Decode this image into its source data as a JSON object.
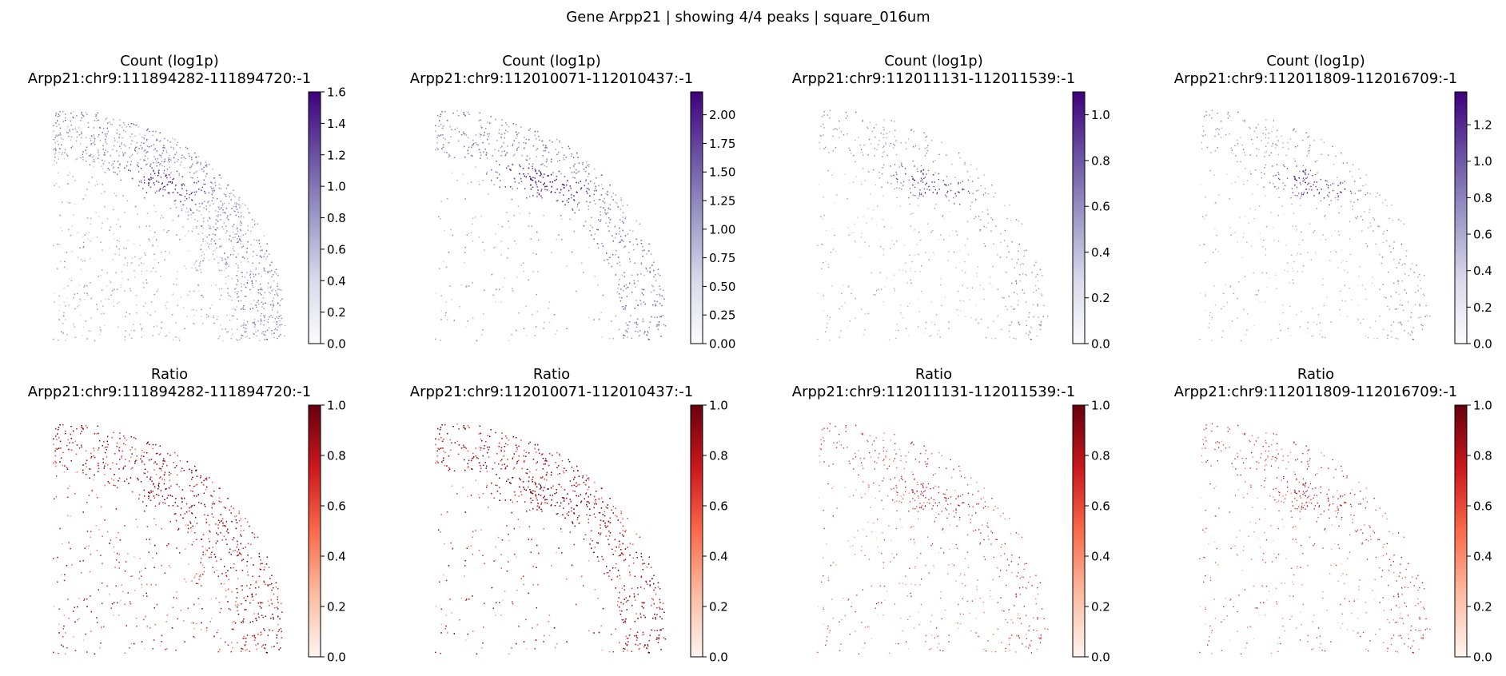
{
  "figure": {
    "suptitle": "Gene Arpp21 | showing 4/4 peaks | square_016um"
  },
  "chart_data": [
    {
      "type": "scatter",
      "row": "count",
      "colormap": "Purples",
      "title_line1": "Count (log1p)",
      "title_line2": "Arpp21:chr9:111894282-111894720:-1",
      "colorbar": {
        "min": 0.0,
        "max": 1.6,
        "ticks": [
          "0.0",
          "0.2",
          "0.4",
          "0.6",
          "0.8",
          "1.0",
          "1.2",
          "1.4",
          "1.6"
        ]
      },
      "density": "high",
      "pattern": "cortex_hippo"
    },
    {
      "type": "scatter",
      "row": "count",
      "colormap": "Purples",
      "title_line1": "Count (log1p)",
      "title_line2": "Arpp21:chr9:112010071-112010437:-1",
      "colorbar": {
        "min": 0.0,
        "max": 2.2,
        "ticks": [
          "0.00",
          "0.25",
          "0.50",
          "0.75",
          "1.00",
          "1.25",
          "1.50",
          "1.75",
          "2.00"
        ]
      },
      "density": "high",
      "pattern": "cortex_striatum"
    },
    {
      "type": "scatter",
      "row": "count",
      "colormap": "Purples",
      "title_line1": "Count (log1p)",
      "title_line2": "Arpp21:chr9:112011131-112011539:-1",
      "colorbar": {
        "min": 0.0,
        "max": 1.1,
        "ticks": [
          "0.0",
          "0.2",
          "0.4",
          "0.6",
          "0.8",
          "1.0"
        ]
      },
      "density": "low",
      "pattern": "sparse_striatum"
    },
    {
      "type": "scatter",
      "row": "count",
      "colormap": "Purples",
      "title_line1": "Count (log1p)",
      "title_line2": "Arpp21:chr9:112011809-112016709:-1",
      "colorbar": {
        "min": 0.0,
        "max": 1.38,
        "ticks": [
          "0.0",
          "0.2",
          "0.4",
          "0.6",
          "0.8",
          "1.0",
          "1.2"
        ]
      },
      "density": "low",
      "pattern": "sparse_striatum"
    },
    {
      "type": "scatter",
      "row": "ratio",
      "colormap": "Reds",
      "title_line1": "Ratio",
      "title_line2": "Arpp21:chr9:111894282-111894720:-1",
      "colorbar": {
        "min": 0.0,
        "max": 1.0,
        "ticks": [
          "0.0",
          "0.2",
          "0.4",
          "0.6",
          "0.8",
          "1.0"
        ]
      },
      "density": "high",
      "pattern": "cortex_hippo"
    },
    {
      "type": "scatter",
      "row": "ratio",
      "colormap": "Reds",
      "title_line1": "Ratio",
      "title_line2": "Arpp21:chr9:112010071-112010437:-1",
      "colorbar": {
        "min": 0.0,
        "max": 1.0,
        "ticks": [
          "0.0",
          "0.2",
          "0.4",
          "0.6",
          "0.8",
          "1.0"
        ]
      },
      "density": "high",
      "pattern": "cortex_striatum"
    },
    {
      "type": "scatter",
      "row": "ratio",
      "colormap": "Reds",
      "title_line1": "Ratio",
      "title_line2": "Arpp21:chr9:112011131-112011539:-1",
      "colorbar": {
        "min": 0.0,
        "max": 1.0,
        "ticks": [
          "0.0",
          "0.2",
          "0.4",
          "0.6",
          "0.8",
          "1.0"
        ]
      },
      "density": "low",
      "pattern": "sparse_striatum"
    },
    {
      "type": "scatter",
      "row": "ratio",
      "colormap": "Reds",
      "title_line1": "Ratio",
      "title_line2": "Arpp21:chr9:112011809-112016709:-1",
      "colorbar": {
        "min": 0.0,
        "max": 1.0,
        "ticks": [
          "0.0",
          "0.2",
          "0.4",
          "0.6",
          "0.8",
          "1.0"
        ]
      },
      "density": "low",
      "pattern": "sparse_striatum"
    }
  ],
  "colors": {
    "purples": [
      "#fcfbfd",
      "#dadaeb",
      "#9e9ac8",
      "#6a51a3",
      "#3f007d"
    ],
    "reds": [
      "#fff5f0",
      "#fcbba1",
      "#fb6a4a",
      "#cb181d",
      "#67000d"
    ]
  }
}
